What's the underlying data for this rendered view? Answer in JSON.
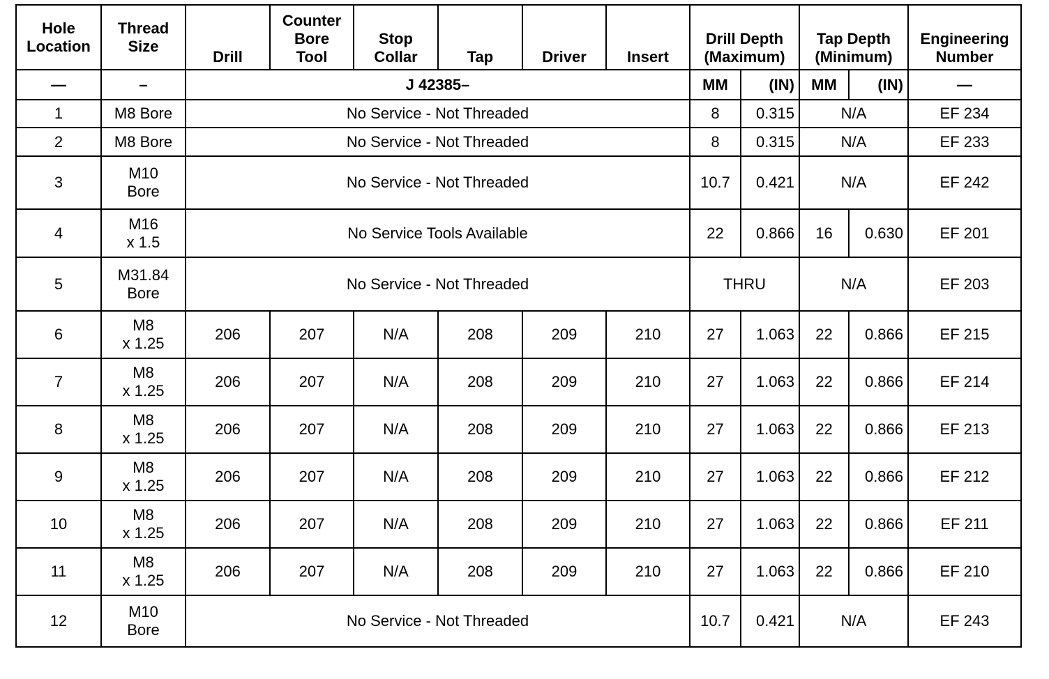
{
  "headers": {
    "hole_location": "Hole\nLocation",
    "thread_size": "Thread\nSize",
    "drill": "Drill",
    "counter_bore_tool": "Counter\nBore\nTool",
    "stop_collar": "Stop\nCollar",
    "tap": "Tap",
    "driver": "Driver",
    "insert": "Insert",
    "drill_depth": "Drill Depth\n(Maximum)",
    "tap_depth": "Tap Depth\n(Minimum)",
    "engineering_number": "Engineering\nNumber"
  },
  "subheader": {
    "hole_location": "—",
    "thread_size": "–",
    "tool_prefix": "J 42385–",
    "drill_mm": "MM",
    "drill_in": "(IN)",
    "tap_mm": "MM",
    "tap_in": "(IN)",
    "engineering_number": "—"
  },
  "rows": [
    {
      "hole": "1",
      "thread": "M8 Bore",
      "tools": "No Service - Not Threaded",
      "drill_mm": "8",
      "drill_in": "0.315",
      "tap": "N/A",
      "eng": "EF 234"
    },
    {
      "hole": "2",
      "thread": "M8 Bore",
      "tools": "No Service - Not Threaded",
      "drill_mm": "8",
      "drill_in": "0.315",
      "tap": "N/A",
      "eng": "EF 233"
    },
    {
      "hole": "3",
      "thread": "M10\nBore",
      "tools": "No Service - Not Threaded",
      "drill_mm": "10.7",
      "drill_in": "0.421",
      "tap": "N/A",
      "eng": "EF 242"
    },
    {
      "hole": "4",
      "thread": "M16\nx 1.5",
      "tools": "No Service Tools Available",
      "drill_mm": "22",
      "drill_in": "0.866",
      "tap_mm": "16",
      "tap_in": "0.630",
      "eng": "EF 201"
    },
    {
      "hole": "5",
      "thread": "M31.84\nBore",
      "tools": "No Service - Not Threaded",
      "drill": "THRU",
      "tap": "N/A",
      "eng": "EF 203"
    },
    {
      "hole": "6",
      "thread": "M8\nx 1.25",
      "drill": "206",
      "counter_bore": "207",
      "stop_collar": "N/A",
      "tap_tool": "208",
      "driver": "209",
      "insert": "210",
      "drill_mm": "27",
      "drill_in": "1.063",
      "tap_mm": "22",
      "tap_in": "0.866",
      "eng": "EF 215"
    },
    {
      "hole": "7",
      "thread": "M8\nx 1.25",
      "drill": "206",
      "counter_bore": "207",
      "stop_collar": "N/A",
      "tap_tool": "208",
      "driver": "209",
      "insert": "210",
      "drill_mm": "27",
      "drill_in": "1.063",
      "tap_mm": "22",
      "tap_in": "0.866",
      "eng": "EF 214"
    },
    {
      "hole": "8",
      "thread": "M8\nx 1.25",
      "drill": "206",
      "counter_bore": "207",
      "stop_collar": "N/A",
      "tap_tool": "208",
      "driver": "209",
      "insert": "210",
      "drill_mm": "27",
      "drill_in": "1.063",
      "tap_mm": "22",
      "tap_in": "0.866",
      "eng": "EF 213"
    },
    {
      "hole": "9",
      "thread": "M8\nx 1.25",
      "drill": "206",
      "counter_bore": "207",
      "stop_collar": "N/A",
      "tap_tool": "208",
      "driver": "209",
      "insert": "210",
      "drill_mm": "27",
      "drill_in": "1.063",
      "tap_mm": "22",
      "tap_in": "0.866",
      "eng": "EF 212"
    },
    {
      "hole": "10",
      "thread": "M8\nx 1.25",
      "drill": "206",
      "counter_bore": "207",
      "stop_collar": "N/A",
      "tap_tool": "208",
      "driver": "209",
      "insert": "210",
      "drill_mm": "27",
      "drill_in": "1.063",
      "tap_mm": "22",
      "tap_in": "0.866",
      "eng": "EF 211"
    },
    {
      "hole": "11",
      "thread": "M8\nx 1.25",
      "drill": "206",
      "counter_bore": "207",
      "stop_collar": "N/A",
      "tap_tool": "208",
      "driver": "209",
      "insert": "210",
      "drill_mm": "27",
      "drill_in": "1.063",
      "tap_mm": "22",
      "tap_in": "0.866",
      "eng": "EF 210"
    },
    {
      "hole": "12",
      "thread": "M10\nBore",
      "tools": "No Service - Not Threaded",
      "drill_mm": "10.7",
      "drill_in": "0.421",
      "tap": "N/A",
      "eng": "EF 243"
    }
  ]
}
